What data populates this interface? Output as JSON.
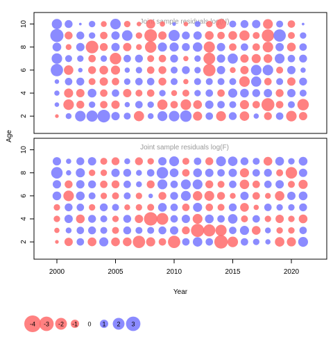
{
  "axis": {
    "ylabel": "Age",
    "xlabel": "Year",
    "x_ticks": [
      "2000",
      "2005",
      "2010",
      "2015",
      "2020"
    ],
    "y_ticks": [
      "2",
      "4",
      "6",
      "8",
      "10"
    ]
  },
  "legend": {
    "values": [
      -4,
      -3,
      -2,
      -1,
      0,
      1,
      2,
      3
    ],
    "labels": [
      "-4",
      "-3",
      "-2",
      "-1",
      "0",
      "1",
      "2",
      "3"
    ]
  },
  "colors": {
    "negative": "#ff6b6b",
    "positive": "#7777ff",
    "frame": "#000000",
    "title": "#999999"
  },
  "chart_data": [
    {
      "type": "scatter",
      "title": "Joint sample residuals log(N)",
      "xlabel": "Year",
      "ylabel": "Age",
      "xlim": [
        1998,
        2023
      ],
      "ylim": [
        0.5,
        11
      ],
      "marker_encoding": "bubble area ~ |residual|, red = negative, blue = positive",
      "years": [
        2000,
        2001,
        2002,
        2003,
        2004,
        2005,
        2006,
        2007,
        2008,
        2009,
        2010,
        2011,
        2012,
        2013,
        2014,
        2015,
        2016,
        2017,
        2018,
        2019,
        2020,
        2021
      ],
      "ages": [
        2,
        3,
        4,
        5,
        6,
        7,
        8,
        9,
        10
      ],
      "residuals": [
        {
          "age": 10,
          "values": [
            1.5,
            0.9,
            0.1,
            0.6,
            -0.5,
            1.6,
            -0.6,
            -0.3,
            -1.2,
            -0.4,
            0.2,
            -0.3,
            0.5,
            -0.6,
            -1.5,
            0.7,
            0.9,
            1.0,
            -1.4,
            0.7,
            -0.8,
            0.1
          ]
        },
        {
          "age": 9,
          "values": [
            2.5,
            -0.9,
            0.9,
            0.6,
            -0.8,
            1.0,
            1.6,
            -0.6,
            -2.3,
            -1.0,
            1.8,
            0.9,
            1.0,
            -1.1,
            -0.8,
            -1.1,
            -1.5,
            -0.7,
            -2.2,
            2.2,
            -0.7,
            0.6
          ]
        },
        {
          "age": 8,
          "values": [
            1.1,
            -0.5,
            1.0,
            -2.3,
            -0.9,
            1.0,
            -1.0,
            -0.5,
            -1.9,
            1.2,
            1.2,
            0.9,
            1.3,
            -1.8,
            1.0,
            -0.8,
            0.8,
            -0.8,
            -1.6,
            1.0,
            -1.1,
            0.8
          ]
        },
        {
          "age": 7,
          "values": [
            1.6,
            0.7,
            0.6,
            -0.8,
            0.6,
            -1.9,
            0.8,
            0.9,
            -0.7,
            -0.8,
            0.9,
            -0.4,
            0.6,
            -2.0,
            1.0,
            1.5,
            -1.0,
            -1.2,
            -1.1,
            1.4,
            0.8,
            0.9
          ]
        },
        {
          "age": 6,
          "values": [
            2.2,
            -1.3,
            0.3,
            -0.9,
            -1.1,
            -1.2,
            0.4,
            0.6,
            -0.8,
            -0.9,
            0.7,
            0.9,
            0.6,
            -2.2,
            1.0,
            -0.5,
            -1.0,
            1.6,
            1.6,
            -0.7,
            1.0,
            0.4
          ]
        },
        {
          "age": 5,
          "values": [
            0.3,
            0.8,
            0.9,
            -0.7,
            -1.0,
            -0.8,
            0.6,
            0.8,
            0.8,
            -0.9,
            0.7,
            -0.4,
            0.7,
            0.7,
            0.7,
            0.7,
            -1.6,
            1.5,
            -0.8,
            0.7,
            -1.0,
            0.9
          ]
        },
        {
          "age": 4,
          "values": [
            0.4,
            -1.2,
            -1.0,
            1.1,
            -0.8,
            0.8,
            -1.0,
            -0.7,
            -0.8,
            0.6,
            -0.5,
            -0.7,
            0.6,
            0.8,
            -0.8,
            1.2,
            1.1,
            0.9,
            1.0,
            -0.9,
            1.0,
            0.7
          ]
        },
        {
          "age": 3,
          "values": [
            0.3,
            -1.6,
            -0.9,
            0.6,
            -0.8,
            -1.0,
            0.4,
            0.8,
            0.6,
            -1.5,
            -0.8,
            -1.6,
            -1.1,
            1.0,
            0.8,
            0.7,
            -1.2,
            -0.8,
            -2.4,
            -0.8,
            0.7,
            -1.9
          ]
        },
        {
          "age": 2,
          "values": [
            -0.2,
            0.5,
            1.6,
            1.8,
            2.3,
            1.0,
            0.7,
            -1.5,
            0.5,
            1.4,
            1.6,
            1.9,
            -1.2,
            0.8,
            -1.4,
            0.9,
            -1.3,
            0.4,
            -0.9,
            0.8,
            -1.6,
            -1.0
          ]
        }
      ]
    },
    {
      "type": "scatter",
      "title": "Joint sample residuals log(F)",
      "xlabel": "Year",
      "ylabel": "Age",
      "xlim": [
        1998,
        2023
      ],
      "ylim": [
        0.5,
        11
      ],
      "marker_encoding": "bubble area ~ |residual|, red = negative, blue = positive",
      "years": [
        2000,
        2001,
        2002,
        2003,
        2004,
        2005,
        2006,
        2007,
        2008,
        2009,
        2010,
        2011,
        2012,
        2013,
        2014,
        2015,
        2016,
        2017,
        2018,
        2019,
        2020,
        2021
      ],
      "ages": [
        2,
        3,
        4,
        5,
        6,
        7,
        8,
        9
      ],
      "residuals": [
        {
          "age": 9,
          "values": [
            1.0,
            0.4,
            0.9,
            1.0,
            -0.7,
            -0.9,
            0.5,
            -0.9,
            -0.6,
            1.0,
            1.4,
            -0.7,
            0.8,
            -0.9,
            1.4,
            1.3,
            0.9,
            0.7,
            -1.1,
            1.1,
            0.6,
            1.1
          ]
        },
        {
          "age": 8,
          "values": [
            1.9,
            0.4,
            1.2,
            -0.6,
            -0.6,
            1.0,
            0.9,
            0.5,
            0.8,
            1.9,
            1.1,
            -0.8,
            1.1,
            1.0,
            0.8,
            1.0,
            -1.2,
            0.8,
            0.9,
            -0.7,
            -1.9,
            1.0
          ]
        },
        {
          "age": 7,
          "values": [
            1.0,
            -0.9,
            1.0,
            0.9,
            -0.8,
            -0.9,
            0.8,
            0.5,
            -0.9,
            1.4,
            0.8,
            1.4,
            1.4,
            -0.9,
            -0.7,
            0.8,
            -1.3,
            -0.8,
            0.8,
            1.0,
            -0.7,
            -1.2
          ]
        },
        {
          "age": 6,
          "values": [
            1.1,
            -1.6,
            1.1,
            0.7,
            -0.6,
            -0.7,
            0.7,
            -0.6,
            0.3,
            -0.9,
            0.9,
            1.4,
            -1.3,
            -1.4,
            -0.9,
            -0.5,
            1.0,
            -0.8,
            -0.5,
            -1.3,
            1.0,
            1.1
          ]
        },
        {
          "age": 5,
          "values": [
            -0.6,
            0.9,
            0.8,
            -0.6,
            0.9,
            0.7,
            -0.5,
            -0.6,
            -0.7,
            1.1,
            0.8,
            -0.8,
            1.2,
            -0.8,
            -0.7,
            0.9,
            -1.1,
            -0.4,
            0.8,
            0.6,
            0.6,
            0.9
          ]
        },
        {
          "age": 4,
          "values": [
            -0.6,
            1.0,
            -1.1,
            0.9,
            0.7,
            -0.6,
            0.9,
            -1.0,
            -2.6,
            -2.0,
            0.8,
            1.0,
            -1.4,
            1.1,
            0.8,
            1.3,
            -0.7,
            0.8,
            -0.6,
            -1.0,
            -0.6,
            -1.1
          ]
        },
        {
          "age": 3,
          "values": [
            -0.4,
            0.5,
            0.8,
            0.9,
            0.7,
            -0.7,
            0.9,
            0.7,
            0.7,
            0.9,
            1.0,
            -0.9,
            -2.5,
            -2.1,
            -1.8,
            0.8,
            1.2,
            -1.1,
            0.5,
            -0.6,
            -0.6,
            0.8
          ]
        },
        {
          "age": 2,
          "values": [
            -0.2,
            -1.0,
            0.8,
            -1.1,
            1.2,
            -1.1,
            -1.1,
            -2.2,
            -1.2,
            -0.8,
            -2.2,
            0.8,
            1.3,
            0.8,
            -2.6,
            -1.6,
            0.8,
            0.6,
            0.4,
            -1.3,
            -1.2,
            1.4
          ]
        }
      ]
    }
  ]
}
